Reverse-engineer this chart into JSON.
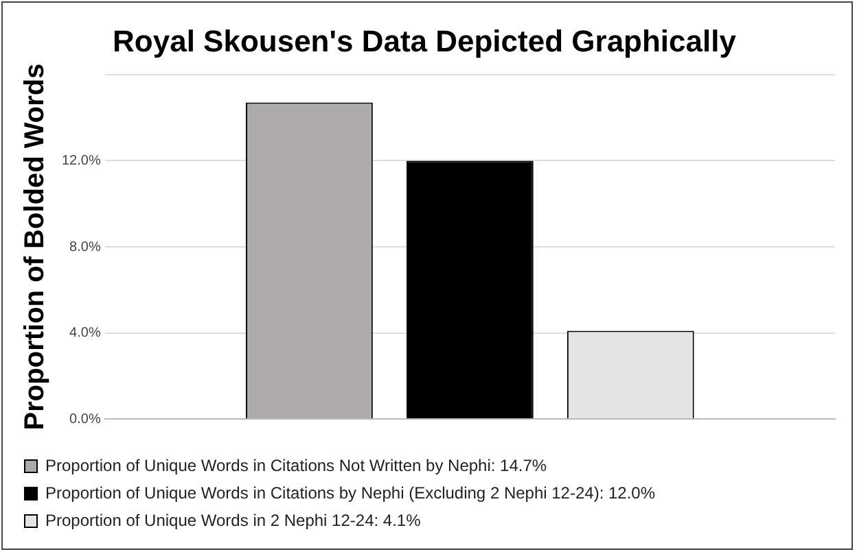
{
  "chart_data": {
    "type": "bar",
    "title": "Royal Skousen's Data Depicted Graphically",
    "ylabel": "Proportion of Bolded Words",
    "categories": [
      null
    ],
    "series": [
      {
        "name": "Proportion of Unique Words in Citations Not Written by Nephi: 14.7%",
        "color": "#aeaaaa",
        "values": [
          14.7
        ]
      },
      {
        "name": "Proportion of Unique Words in Citations by Nephi (Excluding 2 Nephi 12-24): 12.0%",
        "color": "#000000",
        "values": [
          12.0
        ]
      },
      {
        "name": "Proportion of Unique Words in 2 Nephi 12-24: 4.1%",
        "color": "#e4e4e4",
        "values": [
          4.1
        ]
      }
    ],
    "ylim": [
      0,
      16
    ],
    "yticks": [
      {
        "value": 0,
        "label": "0.0%"
      },
      {
        "value": 4,
        "label": "4.0%"
      },
      {
        "value": 8,
        "label": "8.0%"
      },
      {
        "value": 12,
        "label": "12.0%"
      },
      {
        "value": 16,
        "label": null
      }
    ],
    "grid": "y",
    "legend": "bottom"
  }
}
